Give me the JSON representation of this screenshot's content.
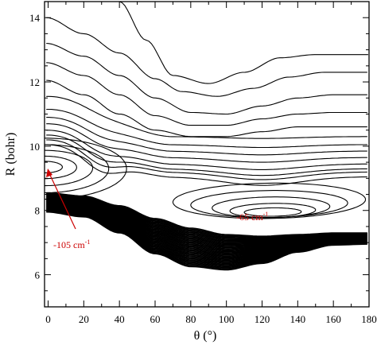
{
  "chart_data": {
    "type": "contour",
    "xlabel": "θ (°)",
    "ylabel": "R (bohr)",
    "xlim": [
      -2,
      180
    ],
    "ylim": [
      5,
      14.5
    ],
    "x_ticks": [
      "0",
      "20",
      "40",
      "60",
      "80",
      "100",
      "120",
      "140",
      "160",
      "180"
    ],
    "y_ticks": [
      "6",
      "8",
      "10",
      "12",
      "14"
    ],
    "minor_x_step": 10,
    "minor_y_step": 0.5,
    "global_minimum": {
      "theta": 0,
      "R": 9.35,
      "label": "-105 cm",
      "superscript": "-1"
    },
    "local_minimum": {
      "theta": 125,
      "R": 7.9,
      "label": "-65 cm",
      "superscript": "-1"
    },
    "annotation_color": "#cc0000",
    "line_color": "#000000",
    "outer_contours": [
      {
        "level": 1,
        "points": [
          [
            40,
            14.5
          ],
          [
            55,
            13.3
          ],
          [
            70,
            12.2
          ],
          [
            90,
            11.95
          ],
          [
            110,
            12.3
          ],
          [
            130,
            12.75
          ],
          [
            150,
            12.85
          ],
          [
            180,
            12.85
          ]
        ]
      },
      {
        "level": 2,
        "points": [
          [
            -1,
            14.0
          ],
          [
            20,
            13.5
          ],
          [
            40,
            12.9
          ],
          [
            60,
            12.1
          ],
          [
            75,
            11.7
          ],
          [
            95,
            11.55
          ],
          [
            115,
            11.8
          ],
          [
            135,
            12.15
          ],
          [
            155,
            12.3
          ],
          [
            180,
            12.3
          ]
        ]
      },
      {
        "level": 3,
        "points": [
          [
            -1,
            13.2
          ],
          [
            20,
            12.8
          ],
          [
            40,
            12.2
          ],
          [
            60,
            11.5
          ],
          [
            80,
            11.05
          ],
          [
            100,
            11.0
          ],
          [
            120,
            11.25
          ],
          [
            140,
            11.5
          ],
          [
            160,
            11.6
          ],
          [
            180,
            11.6
          ]
        ]
      },
      {
        "level": 4,
        "points": [
          [
            -1,
            12.6
          ],
          [
            20,
            12.2
          ],
          [
            40,
            11.6
          ],
          [
            60,
            10.95
          ],
          [
            80,
            10.65
          ],
          [
            100,
            10.65
          ],
          [
            120,
            10.85
          ],
          [
            140,
            11.0
          ],
          [
            160,
            11.05
          ],
          [
            180,
            11.05
          ]
        ]
      },
      {
        "level": 5,
        "points": [
          [
            -1,
            12.05
          ],
          [
            20,
            11.6
          ],
          [
            40,
            11.0
          ],
          [
            60,
            10.5
          ],
          [
            80,
            10.3
          ],
          [
            100,
            10.3
          ],
          [
            120,
            10.45
          ],
          [
            140,
            10.6
          ],
          [
            160,
            10.6
          ],
          [
            180,
            10.6
          ]
        ]
      }
    ],
    "inner_contours": [
      {
        "level": 6,
        "R0": 11.55,
        "R_plateau": 10.3,
        "dip": 0.1
      },
      {
        "level": 7,
        "R0": 11.15,
        "R_plateau": 10.05,
        "dip": 0.15
      },
      {
        "level": 8,
        "R0": 10.9,
        "R_plateau": 9.85,
        "dip": 0.2
      },
      {
        "level": 9,
        "R0": 10.7,
        "R_plateau": 9.65,
        "dip": 0.25
      },
      {
        "level": 10,
        "R0": 10.5,
        "R_plateau": 9.45,
        "dip": 0.3
      },
      {
        "level": 11,
        "R0": 10.35,
        "R_plateau": 9.3,
        "dip": 0.35
      },
      {
        "level": 12,
        "R0": 10.2,
        "R_plateau": 9.2,
        "dip": 0.4
      },
      {
        "level": 13,
        "R0": 10.05,
        "R_plateau": 9.05,
        "dip": 0.45
      }
    ],
    "well_loops": [
      {
        "level": 14,
        "theta_range": [
          70,
          178
        ],
        "R_center": 8.3,
        "R_half": 0.55
      },
      {
        "level": 15,
        "theta_range": [
          80,
          168
        ],
        "R_center": 8.2,
        "R_half": 0.42
      },
      {
        "level": 16,
        "theta_range": [
          92,
          158
        ],
        "R_center": 8.1,
        "R_half": 0.32
      },
      {
        "level": 17,
        "theta_range": [
          102,
          150
        ],
        "R_center": 8.0,
        "R_half": 0.22
      },
      {
        "level": 18,
        "theta_range": [
          110,
          142
        ],
        "R_center": 7.95,
        "R_half": 0.13
      }
    ],
    "global_loops": [
      {
        "level": 14,
        "theta_max": 44,
        "R_center": 9.3,
        "R_half": 0.95
      },
      {
        "level": 15,
        "theta_max": 34,
        "R_center": 9.3,
        "R_half": 0.75
      },
      {
        "level": 16,
        "theta_max": 25,
        "R_center": 9.32,
        "R_half": 0.55
      },
      {
        "level": 17,
        "theta_max": 16,
        "R_center": 9.34,
        "R_half": 0.35
      },
      {
        "level": 18,
        "theta_max": 8,
        "R_center": 9.35,
        "R_half": 0.18
      }
    ],
    "repulsive_wall": {
      "count": 40,
      "top": [
        [
          -1,
          8.55
        ],
        [
          20,
          8.45
        ],
        [
          40,
          8.15
        ],
        [
          60,
          7.75
        ],
        [
          80,
          7.45
        ],
        [
          100,
          7.25
        ],
        [
          120,
          7.2
        ],
        [
          140,
          7.25
        ],
        [
          160,
          7.3
        ],
        [
          180,
          7.3
        ]
      ],
      "bottom": [
        [
          -1,
          7.95
        ],
        [
          20,
          7.8
        ],
        [
          40,
          7.3
        ],
        [
          60,
          6.65
        ],
        [
          80,
          6.25
        ],
        [
          100,
          6.15
        ],
        [
          120,
          6.35
        ],
        [
          140,
          6.7
        ],
        [
          160,
          6.92
        ],
        [
          180,
          6.95
        ]
      ]
    }
  }
}
